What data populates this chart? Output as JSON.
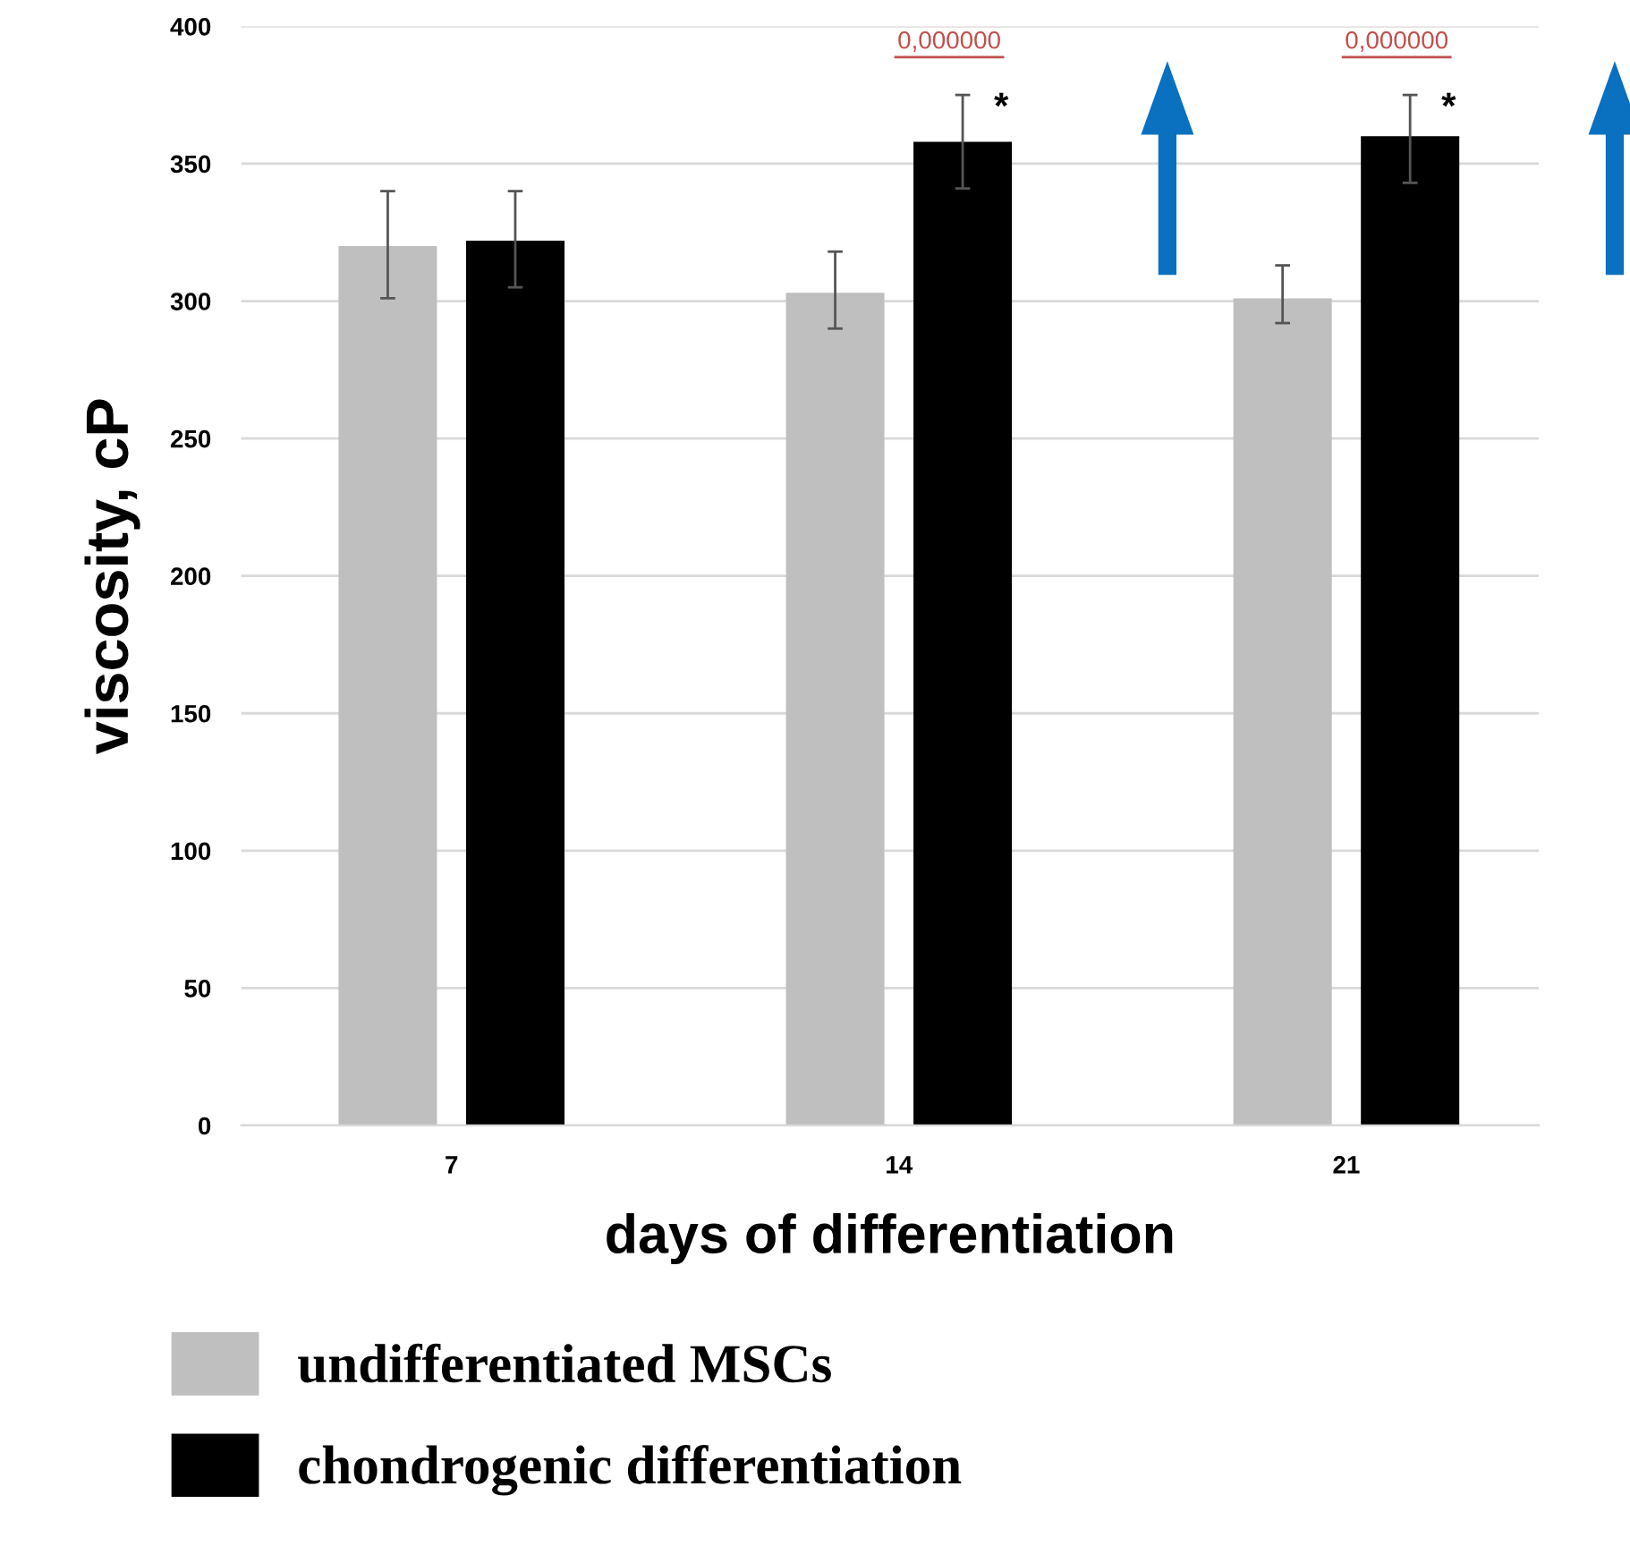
{
  "chart_data": {
    "type": "bar",
    "xlabel": "days of differentiation",
    "ylabel": "viscosity, cP",
    "categories": [
      "7",
      "14",
      "21"
    ],
    "series": [
      {
        "name": "undifferentiated MSCs",
        "color": "#bfbfbf",
        "values": [
          320,
          303,
          301
        ],
        "errors": [
          [
            301,
            340
          ],
          [
            290,
            318
          ],
          [
            292,
            313
          ]
        ]
      },
      {
        "name": "chondrogenic differentiation",
        "color": "#000000",
        "values": [
          322,
          358,
          360
        ],
        "errors": [
          [
            305,
            340
          ],
          [
            341,
            375
          ],
          [
            343,
            375
          ]
        ]
      }
    ],
    "annotations": [
      "0,000000",
      "*",
      "0,000000",
      "*"
    ],
    "ylim": [
      0,
      400
    ],
    "yticks": [
      0,
      50,
      100,
      150,
      200,
      250,
      300,
      350,
      400
    ],
    "grid": "y",
    "legend": "bottom"
  }
}
